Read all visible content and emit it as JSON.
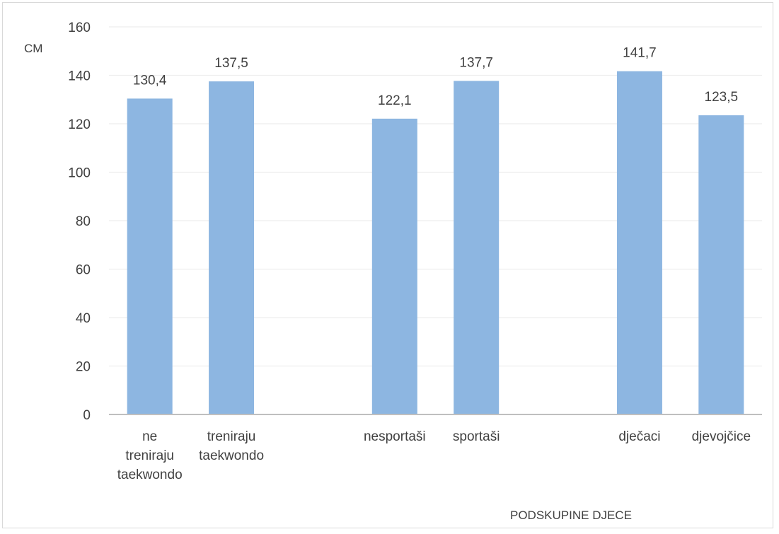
{
  "chart_data": {
    "type": "bar",
    "title": "",
    "ylabel": "CM",
    "xlabel": "PODSKUPINE DJECE",
    "ylim": [
      0,
      160
    ],
    "ytick_step": 20,
    "grid": true,
    "categories": [
      [
        "ne",
        "treniraju",
        "taekwondo"
      ],
      [
        "treniraju",
        "taekwondo"
      ],
      [
        ""
      ],
      [
        "nesportaši"
      ],
      [
        "sportaši"
      ],
      [
        ""
      ],
      [
        "dječaci"
      ],
      [
        "djevojčice"
      ]
    ],
    "values": [
      130.4,
      137.5,
      null,
      122.1,
      137.7,
      null,
      141.7,
      123.5
    ],
    "data_labels": [
      "130,4",
      "137,5",
      "",
      "122,1",
      "137,7",
      "",
      "141,7",
      "123,5"
    ],
    "bar_color": "#8db6e1",
    "grid_color": "#eeeeee",
    "axis_color": "#bfbfbf",
    "text_color": "#404040"
  }
}
